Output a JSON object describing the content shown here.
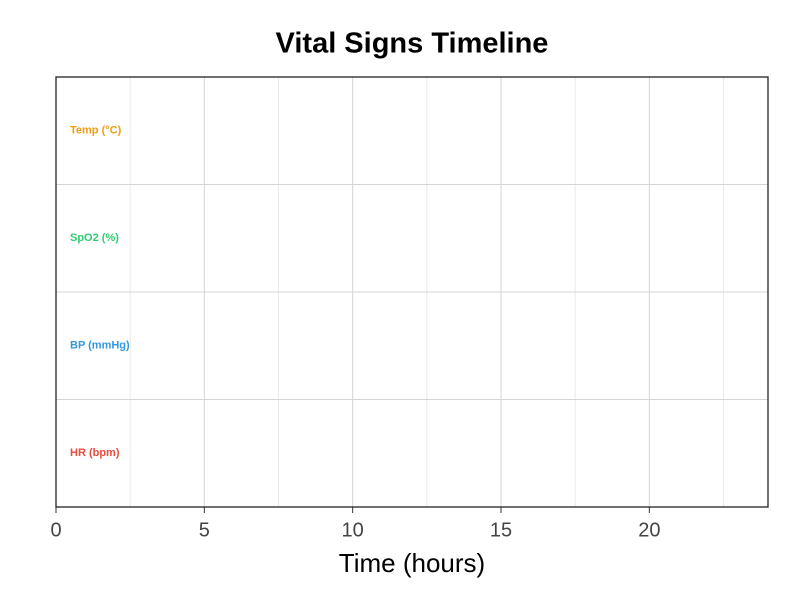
{
  "chart_data": {
    "type": "timeline",
    "title": "Vital Signs Timeline",
    "x_label": "Time (hours)",
    "xlim": [
      0,
      24
    ],
    "xticks": [
      0,
      5,
      10,
      15,
      20
    ],
    "xminorticks": [
      2.5,
      7.5,
      12.5,
      17.5,
      22.5
    ],
    "grid": true,
    "series": [
      {
        "name": "Temp (°C)",
        "color": "#f39c12"
      },
      {
        "name": "SpO2 (%)",
        "color": "#2ecc71"
      },
      {
        "name": "BP (mmHg)",
        "color": "#3498db"
      },
      {
        "name": "HR (bpm)",
        "color": "#e74c3c"
      }
    ]
  }
}
